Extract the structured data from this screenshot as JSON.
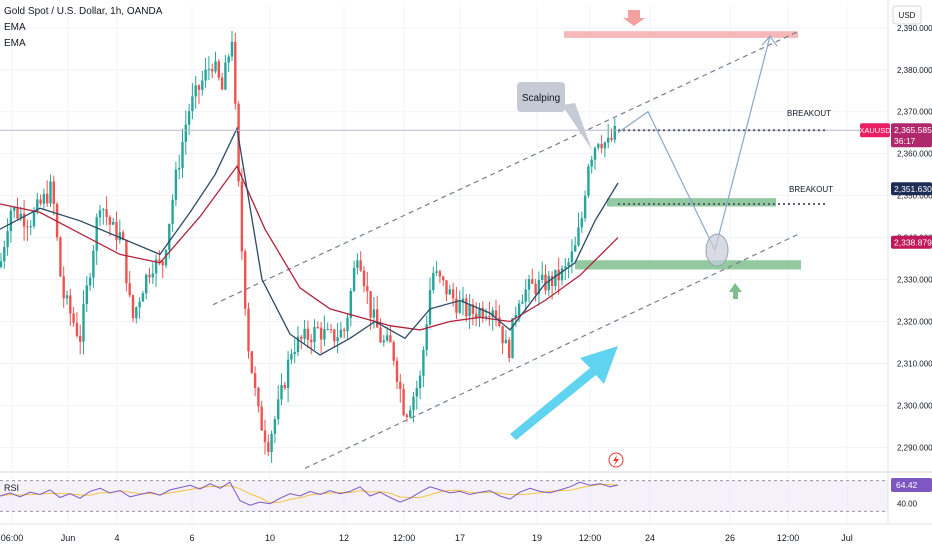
{
  "header": {
    "symbol_line": "Gold Spot / U.S. Dollar, 1h, OANDA",
    "ema1_label": "EMA",
    "ema2_label": "EMA"
  },
  "currency": "USD",
  "price_axis": {
    "ticks": [
      "2,390.000",
      "2,380.000",
      "2,370.000",
      "2,360.000",
      "2,350.000",
      "2,340.000",
      "2,330.000",
      "2,320.000",
      "2,310.000",
      "2,300.000",
      "2,290.000"
    ],
    "tick_values": [
      2390,
      2380,
      2370,
      2360,
      2350,
      2340,
      2330,
      2320,
      2310,
      2300,
      2290
    ],
    "range": [
      2284.6,
      2395.2
    ]
  },
  "badges": {
    "symbol": "XAUUSD",
    "price": "2,365.585",
    "countdown": "36:17",
    "ema1": "2,351.630",
    "ema2": "2,338.879"
  },
  "badge_colors": {
    "symbol": "#e91e63",
    "price": "#b0286c",
    "ema1": "#1e2d55",
    "ema2": "#c2185b"
  },
  "time_axis": {
    "labels": [
      "06:00",
      "Jun",
      "4",
      "6",
      "10",
      "12",
      "12:00",
      "17",
      "19",
      "12:00",
      "24",
      "26",
      "12:00",
      "Jul"
    ]
  },
  "annotations": {
    "scalping": "Scalping",
    "breakout_upper": "BREAKOUT",
    "breakout_lower": "BREAKOUT"
  },
  "rsi": {
    "label": "RSI",
    "value": "64.42",
    "ticks": [
      "40.00"
    ],
    "tick_values": [
      40
    ],
    "levels": [
      70,
      30
    ],
    "range": [
      20,
      80
    ]
  },
  "colors": {
    "up_candle": "#26a69a",
    "down_candle": "#ef5350",
    "ema_fast": "#2c4a66",
    "ema_slow": "#b2223a",
    "arrow": "#5fd3f0",
    "supply_zone": "#f4a6a6",
    "demand_zone": "#7fbf8f",
    "rsi_line": "#7e57c2",
    "rsi_ma": "#f5c342"
  },
  "chart_data": {
    "type": "candlestick",
    "symbol": "XAUUSD",
    "timeframe": "1h",
    "ema_fast": [
      [
        0,
        2342
      ],
      [
        40,
        2347
      ],
      [
        80,
        2344
      ],
      [
        120,
        2340
      ],
      [
        160,
        2336
      ],
      [
        190,
        2346
      ],
      [
        215,
        2355
      ],
      [
        237,
        2366
      ],
      [
        262,
        2330
      ],
      [
        290,
        2317
      ],
      [
        320,
        2312
      ],
      [
        350,
        2316
      ],
      [
        375,
        2320
      ],
      [
        405,
        2316
      ],
      [
        430,
        2323
      ],
      [
        460,
        2325
      ],
      [
        490,
        2322
      ],
      [
        510,
        2318
      ],
      [
        545,
        2329
      ],
      [
        575,
        2334
      ],
      [
        595,
        2344
      ],
      [
        618,
        2353
      ]
    ],
    "ema_slow": [
      [
        0,
        2348
      ],
      [
        40,
        2346
      ],
      [
        80,
        2341
      ],
      [
        120,
        2336
      ],
      [
        160,
        2334
      ],
      [
        200,
        2345
      ],
      [
        237,
        2357
      ],
      [
        265,
        2342
      ],
      [
        300,
        2328
      ],
      [
        330,
        2323
      ],
      [
        360,
        2321
      ],
      [
        390,
        2319
      ],
      [
        420,
        2318
      ],
      [
        450,
        2320
      ],
      [
        480,
        2321
      ],
      [
        510,
        2320
      ],
      [
        545,
        2325
      ],
      [
        580,
        2331
      ],
      [
        618,
        2340
      ]
    ],
    "price_path": [
      [
        0,
        2333
      ],
      [
        10,
        2347
      ],
      [
        30,
        2344
      ],
      [
        52,
        2352
      ],
      [
        62,
        2327
      ],
      [
        80,
        2316
      ],
      [
        92,
        2336
      ],
      [
        100,
        2349
      ],
      [
        112,
        2342
      ],
      [
        122,
        2340
      ],
      [
        132,
        2320
      ],
      [
        142,
        2328
      ],
      [
        152,
        2334
      ],
      [
        162,
        2333
      ],
      [
        175,
        2353
      ],
      [
        188,
        2370
      ],
      [
        200,
        2376
      ],
      [
        212,
        2382
      ],
      [
        222,
        2375
      ],
      [
        232,
        2388
      ],
      [
        240,
        2344
      ],
      [
        248,
        2315
      ],
      [
        258,
        2298
      ],
      [
        268,
        2291
      ],
      [
        280,
        2301
      ],
      [
        292,
        2314
      ],
      [
        305,
        2316
      ],
      [
        318,
        2318
      ],
      [
        330,
        2316
      ],
      [
        345,
        2318
      ],
      [
        358,
        2338
      ],
      [
        370,
        2323
      ],
      [
        382,
        2315
      ],
      [
        392,
        2314
      ],
      [
        405,
        2298
      ],
      [
        420,
        2306
      ],
      [
        432,
        2332
      ],
      [
        445,
        2328
      ],
      [
        458,
        2324
      ],
      [
        470,
        2322
      ],
      [
        482,
        2323
      ],
      [
        494,
        2324
      ],
      [
        508,
        2312
      ],
      [
        518,
        2326
      ],
      [
        530,
        2328
      ],
      [
        545,
        2329
      ],
      [
        555,
        2330
      ],
      [
        565,
        2332
      ],
      [
        575,
        2337
      ],
      [
        582,
        2345
      ],
      [
        588,
        2358
      ],
      [
        598,
        2364
      ],
      [
        608,
        2362
      ],
      [
        616,
        2365
      ]
    ],
    "channel_upper": [
      [
        213,
        2324
      ],
      [
        797,
        2389
      ]
    ],
    "channel_lower": [
      [
        305,
        2285
      ],
      [
        800,
        2341
      ]
    ],
    "breakout_levels": [
      2365.585,
      2348
    ],
    "zones": [
      {
        "name": "supply",
        "x": [
          564,
          798
        ],
        "y": [
          2387.6,
          2389.2
        ]
      },
      {
        "name": "demand_upper",
        "x": [
          607,
          776
        ],
        "y": [
          2347.4,
          2349.4
        ]
      },
      {
        "name": "demand_lower",
        "x": [
          575,
          801
        ],
        "y": [
          2332.4,
          2334.6
        ]
      }
    ],
    "projection": [
      [
        618,
        2365
      ],
      [
        648,
        2370
      ],
      [
        715,
        2337
      ],
      [
        770,
        2388
      ]
    ],
    "rsi_values": [
      [
        0,
        50
      ],
      [
        10,
        54
      ],
      [
        20,
        49
      ],
      [
        30,
        55
      ],
      [
        40,
        52
      ],
      [
        50,
        58
      ],
      [
        60,
        48
      ],
      [
        70,
        53
      ],
      [
        80,
        47
      ],
      [
        90,
        56
      ],
      [
        100,
        60
      ],
      [
        110,
        54
      ],
      [
        120,
        57
      ],
      [
        130,
        49
      ],
      [
        140,
        52
      ],
      [
        150,
        55
      ],
      [
        160,
        51
      ],
      [
        170,
        58
      ],
      [
        180,
        61
      ],
      [
        190,
        64
      ],
      [
        200,
        59
      ],
      [
        210,
        66
      ],
      [
        220,
        60
      ],
      [
        230,
        68
      ],
      [
        240,
        44
      ],
      [
        250,
        38
      ],
      [
        260,
        42
      ],
      [
        270,
        40
      ],
      [
        280,
        47
      ],
      [
        290,
        53
      ],
      [
        300,
        50
      ],
      [
        310,
        56
      ],
      [
        320,
        52
      ],
      [
        330,
        57
      ],
      [
        340,
        53
      ],
      [
        350,
        56
      ],
      [
        360,
        62
      ],
      [
        370,
        50
      ],
      [
        380,
        55
      ],
      [
        390,
        48
      ],
      [
        400,
        42
      ],
      [
        410,
        47
      ],
      [
        420,
        55
      ],
      [
        430,
        62
      ],
      [
        440,
        58
      ],
      [
        450,
        54
      ],
      [
        460,
        56
      ],
      [
        470,
        52
      ],
      [
        480,
        55
      ],
      [
        490,
        57
      ],
      [
        500,
        50
      ],
      [
        510,
        46
      ],
      [
        520,
        55
      ],
      [
        530,
        60
      ],
      [
        540,
        56
      ],
      [
        550,
        54
      ],
      [
        560,
        58
      ],
      [
        570,
        62
      ],
      [
        580,
        68
      ],
      [
        590,
        64
      ],
      [
        600,
        66
      ],
      [
        610,
        62
      ],
      [
        618,
        64.4
      ]
    ]
  }
}
